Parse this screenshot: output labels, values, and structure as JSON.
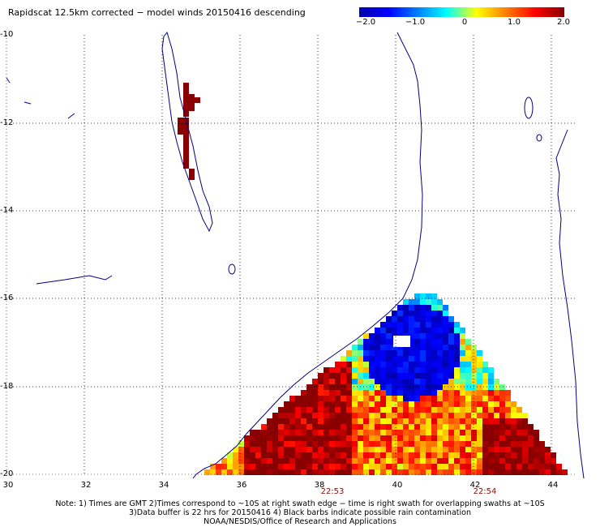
{
  "title": "Rapidscat 12.5km corrected − model winds 20150416 descending",
  "colorbar": {
    "labels": [
      "−2.0",
      "−1.0",
      "0",
      "1.0",
      "2.0"
    ],
    "values": [
      -2.0,
      -1.0,
      0,
      1.0,
      2.0
    ],
    "colors": [
      "#0000aa",
      "#0000ff",
      "#0080ff",
      "#00ffff",
      "#ffff00",
      "#ff8000",
      "#ff0000",
      "#880000"
    ]
  },
  "lat_labels": [
    "-10",
    "-12",
    "-14",
    "-16",
    "-18",
    "-20"
  ],
  "lon_labels": [
    "30",
    "32",
    "34",
    "36",
    "38",
    "40",
    "42",
    "44"
  ],
  "time_labels": [
    "22:53",
    "22:54"
  ],
  "notes": {
    "line1": "Note: 1) Times are GMT 2)Times correspond to ~10S at right swath edge − time is right swath for overlapping swaths at ~10S",
    "line2": "3)Data buffer is 22 hrs for 20150416 4) Black barbs indicate possible rain contamination",
    "line3": "NOAA/NESDIS/Office of Research and Applications"
  },
  "map_data": {
    "lat_range": [
      -20,
      -10
    ],
    "lon_range": [
      30,
      44.5
    ],
    "swath_extent_note": "triangular wind-difference swath over Mozambique channel"
  }
}
